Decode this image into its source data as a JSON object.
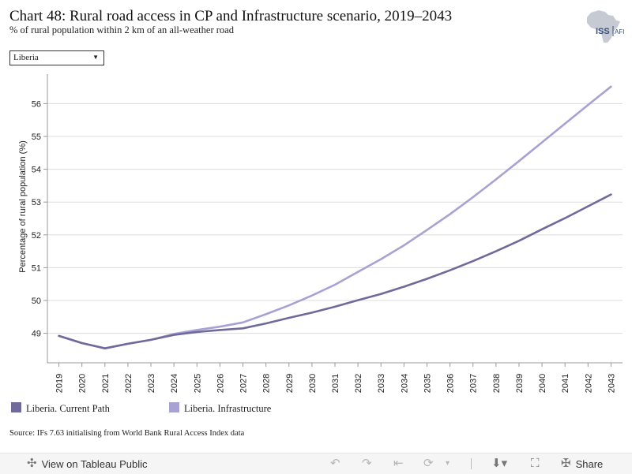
{
  "header": {
    "title": "Chart 48: Rural road access in CP and Infrastructure scenario, 2019–2043",
    "subtitle": "% of rural population within 2 km of an all-weather road",
    "logo_text": "ISS",
    "logo_text_suffix": "AFI"
  },
  "filter": {
    "selected": "Liberia"
  },
  "chart_data": {
    "type": "line",
    "title": "Chart 48: Rural road access in CP and Infrastructure scenario, 2019–2043",
    "subtitle": "% of rural population within 2 km of an all-weather road",
    "xlabel": "",
    "ylabel": "Percentage of rural population (%)",
    "x": [
      2019,
      2020,
      2021,
      2022,
      2023,
      2024,
      2025,
      2026,
      2027,
      2028,
      2029,
      2030,
      2031,
      2032,
      2033,
      2034,
      2035,
      2036,
      2037,
      2038,
      2039,
      2040,
      2041,
      2042,
      2043
    ],
    "yticks": [
      49,
      50,
      51,
      52,
      53,
      54,
      55,
      56
    ],
    "ylim": [
      48.1,
      56.9
    ],
    "grid": "horizontal",
    "legend_position": "bottom-left",
    "series": [
      {
        "name": "Liberia. Current Path",
        "color": "#6f6a9a",
        "values": [
          48.92,
          48.7,
          48.54,
          48.68,
          48.8,
          48.95,
          49.04,
          49.1,
          49.15,
          49.3,
          49.47,
          49.63,
          49.81,
          50.01,
          50.2,
          50.42,
          50.66,
          50.92,
          51.2,
          51.5,
          51.82,
          52.17,
          52.51,
          52.87,
          53.23
        ]
      },
      {
        "name": "Liberia. Infrastructure",
        "color": "#a7a2d3",
        "values": [
          48.92,
          48.7,
          48.54,
          48.68,
          48.8,
          48.98,
          49.1,
          49.2,
          49.33,
          49.58,
          49.85,
          50.15,
          50.48,
          50.87,
          51.26,
          51.68,
          52.15,
          52.63,
          53.15,
          53.69,
          54.25,
          54.82,
          55.39,
          55.96,
          56.52
        ]
      }
    ]
  },
  "legend": {
    "items": [
      {
        "label": "Liberia. Current Path",
        "color": "#6f6a9a"
      },
      {
        "label": "Liberia. Infrastructure",
        "color": "#a7a2d3"
      }
    ]
  },
  "source": "Source: IFs 7.63 initialising from World Bank Rural Access Index data",
  "toolbar": {
    "view_label": "View on Tableau Public",
    "share_label": "Share"
  }
}
